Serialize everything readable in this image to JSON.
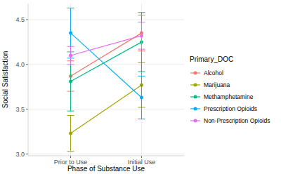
{
  "chart_data": {
    "type": "line",
    "x_label": "Phase of Substance Use",
    "y_label": "Social Satisfaction",
    "legend_title": "Primary_DOC",
    "categories": [
      "Prior to Use",
      "Initial Use"
    ],
    "ylim": [
      2.98,
      4.68
    ],
    "yticks": [
      {
        "value": 3,
        "label": "3.0"
      },
      3.5,
      {
        "value": 4,
        "label": "4.0"
      },
      4.5
    ],
    "grid": true,
    "legend": "right",
    "marker": "circle",
    "series": [
      {
        "name": "Alcohol",
        "color": "#F8766D",
        "values": [
          3.87,
          4.35
        ],
        "errors": [
          0.17,
          0.2
        ]
      },
      {
        "name": "Marijuana",
        "color": "#A3A500",
        "values": [
          3.23,
          3.77
        ],
        "errors": [
          0.2,
          0.25
        ]
      },
      {
        "name": "Methamphetamine",
        "color": "#00BF7D",
        "values": [
          3.81,
          4.25
        ],
        "errors": [
          0.33,
          0.33
        ]
      },
      {
        "name": "Prescription Opioids",
        "color": "#00B0F6",
        "values": [
          4.35,
          3.63
        ],
        "errors": [
          0.28,
          0.24
        ]
      },
      {
        "name": "Non-Prescription Opioids",
        "color": "#E76BF3",
        "values": [
          4.1,
          4.32
        ],
        "errors": [
          0.1,
          0.15
        ]
      }
    ]
  }
}
